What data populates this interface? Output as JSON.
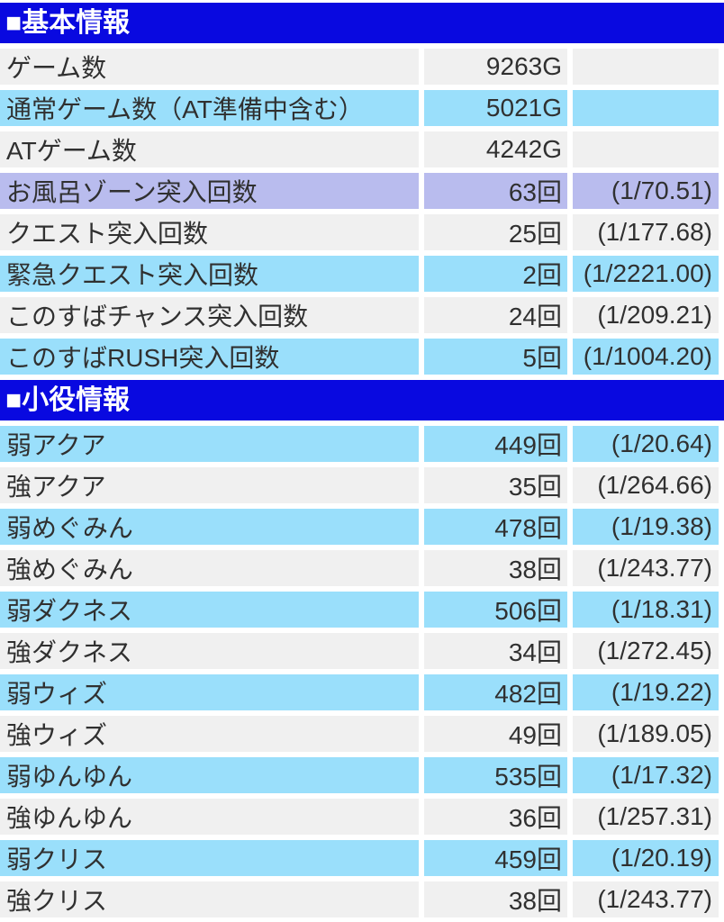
{
  "colors": {
    "header_bg": "#0909e0",
    "header_text": "#ffffff",
    "row_gray": "#f0f0f0",
    "row_cyan": "#9adffb",
    "row_highlight_lavender": "#b9bcee",
    "text": "#303030",
    "page_bg": "#ffffff"
  },
  "sections": [
    {
      "title": "■基本情報",
      "rows": [
        {
          "label": "ゲーム数",
          "value": "9263G",
          "ratio": ""
        },
        {
          "label": "通常ゲーム数（AT準備中含む）",
          "value": "5021G",
          "ratio": ""
        },
        {
          "label": "ATゲーム数",
          "value": "4242G",
          "ratio": ""
        },
        {
          "label": "お風呂ゾーン突入回数",
          "value": "63回",
          "ratio": "(1/70.51)"
        },
        {
          "label": "クエスト突入回数",
          "value": "25回",
          "ratio": "(1/177.68)"
        },
        {
          "label": "緊急クエスト突入回数",
          "value": "2回",
          "ratio": "(1/2221.00)"
        },
        {
          "label": "このすばチャンス突入回数",
          "value": "24回",
          "ratio": "(1/209.21)"
        },
        {
          "label": "このすばRUSH突入回数",
          "value": "5回",
          "ratio": "(1/1004.20)"
        }
      ]
    },
    {
      "title": "■小役情報",
      "rows": [
        {
          "label": "弱アクア",
          "value": "449回",
          "ratio": "(1/20.64)"
        },
        {
          "label": "強アクア",
          "value": "35回",
          "ratio": "(1/264.66)"
        },
        {
          "label": "弱めぐみん",
          "value": "478回",
          "ratio": "(1/19.38)"
        },
        {
          "label": "強めぐみん",
          "value": "38回",
          "ratio": "(1/243.77)"
        },
        {
          "label": "弱ダクネス",
          "value": "506回",
          "ratio": "(1/18.31)"
        },
        {
          "label": "強ダクネス",
          "value": "34回",
          "ratio": "(1/272.45)"
        },
        {
          "label": "弱ウィズ",
          "value": "482回",
          "ratio": "(1/19.22)"
        },
        {
          "label": "強ウィズ",
          "value": "49回",
          "ratio": "(1/189.05)"
        },
        {
          "label": "弱ゆんゆん",
          "value": "535回",
          "ratio": "(1/17.32)"
        },
        {
          "label": "強ゆんゆん",
          "value": "36回",
          "ratio": "(1/257.31)"
        },
        {
          "label": "弱クリス",
          "value": "459回",
          "ratio": "(1/20.19)"
        },
        {
          "label": "強クリス",
          "value": "38回",
          "ratio": "(1/243.77)"
        }
      ]
    }
  ]
}
